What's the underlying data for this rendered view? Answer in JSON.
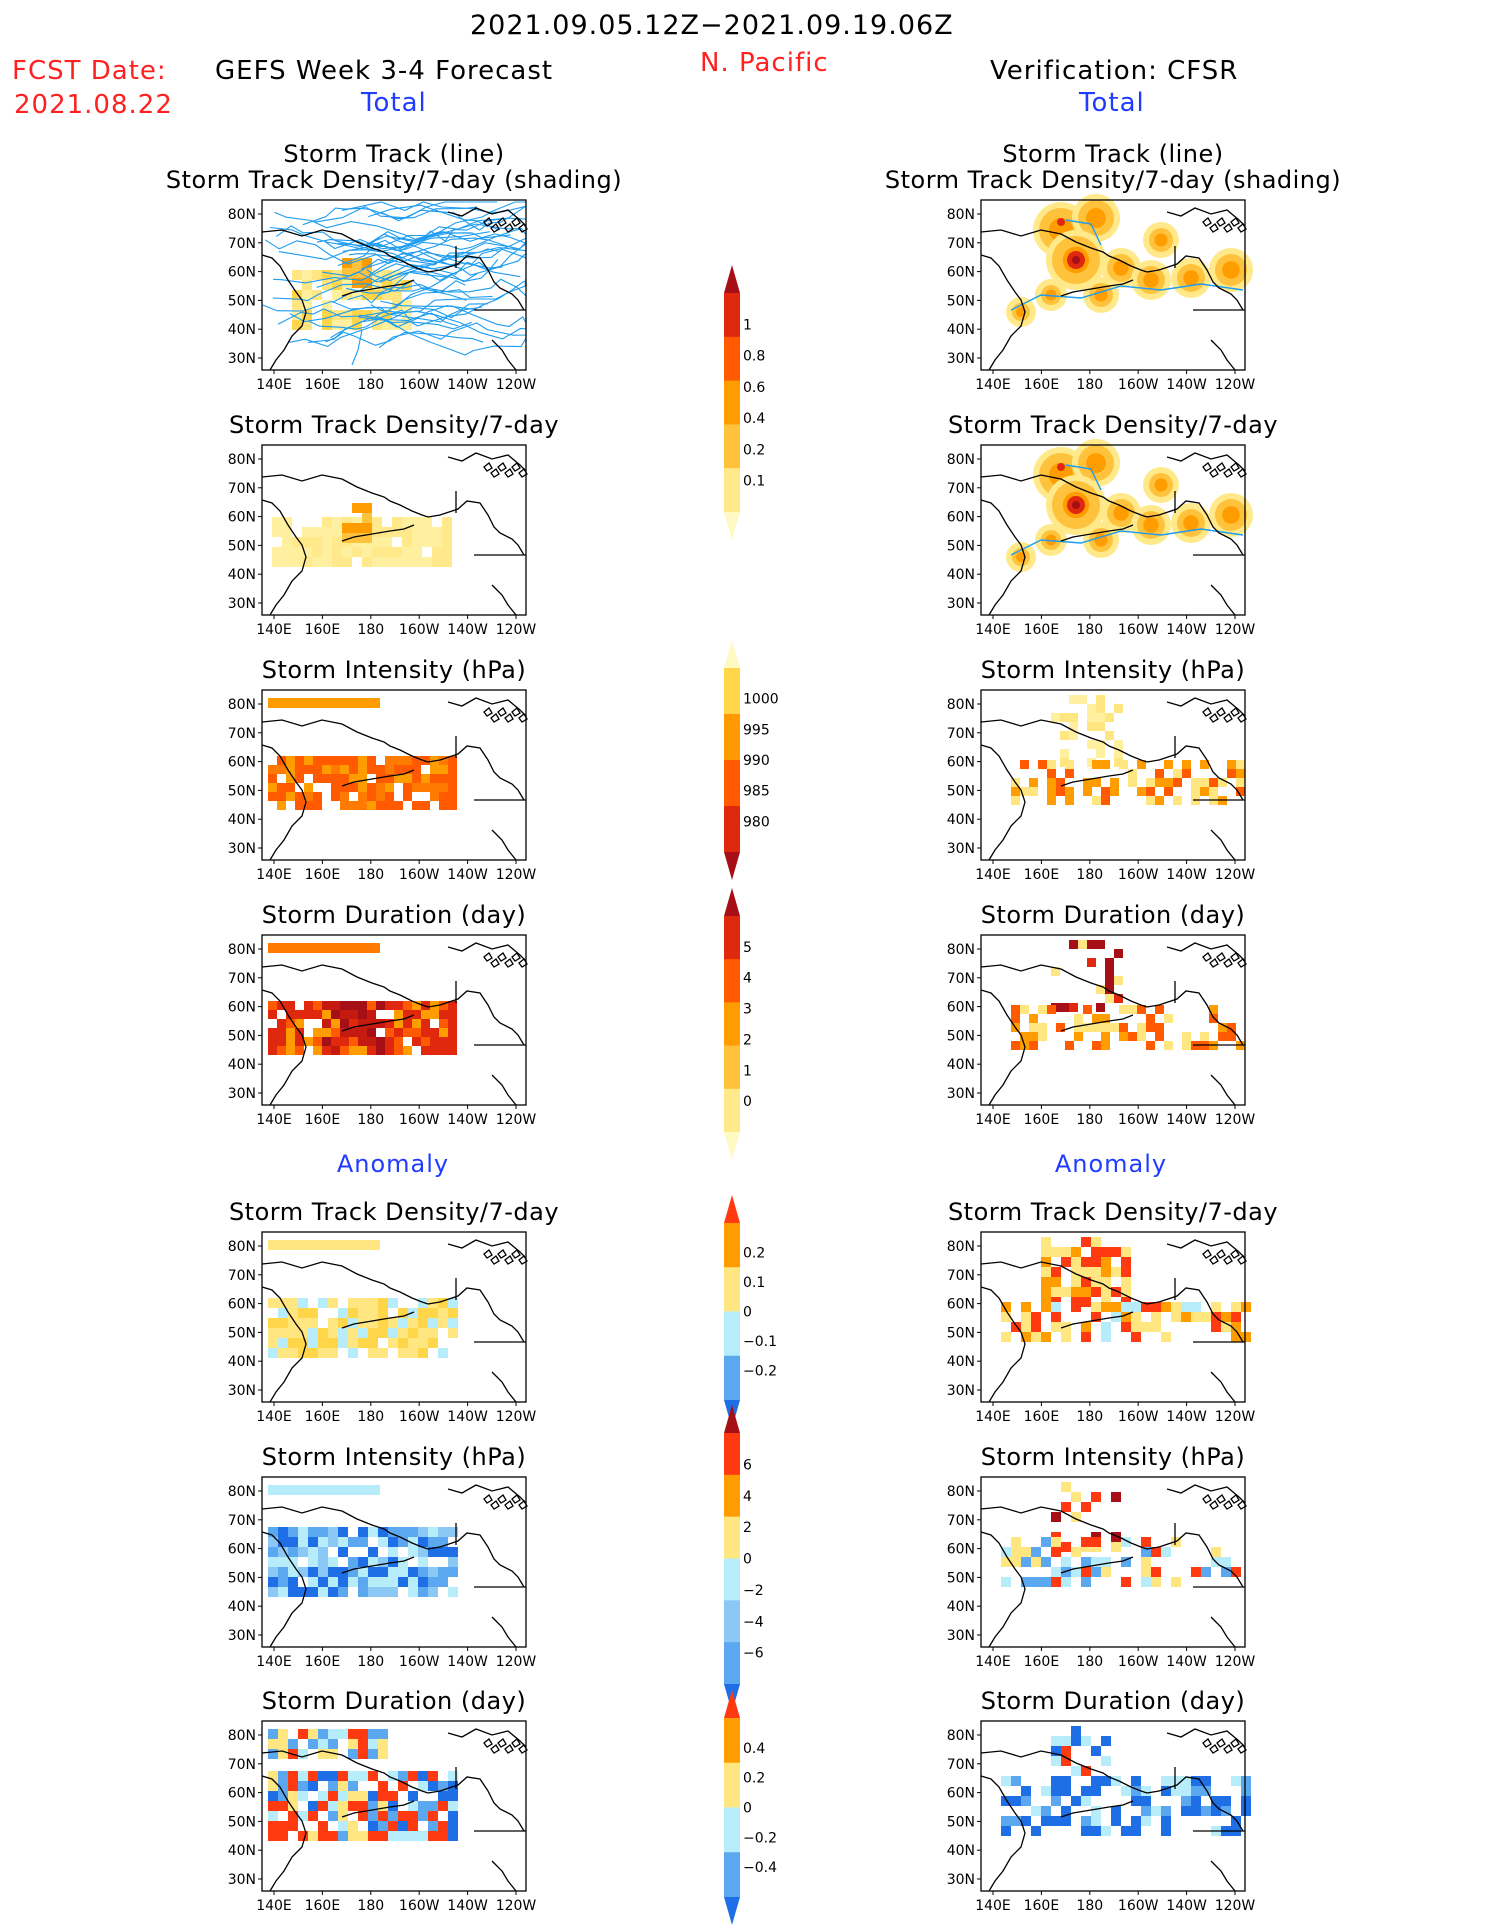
{
  "header": {
    "date_range": "2021.09.05.12Z−2021.09.19.06Z",
    "region": "N. Pacific",
    "fcst_label": "FCST Date:",
    "fcst_date": "2021.08.22",
    "left_title": "GEFS Week 3-4 Forecast",
    "right_title": "Verification: CFSR",
    "left_sub": "Total",
    "right_sub": "Total",
    "anomaly_left": "Anomaly",
    "anomaly_right": "Anomaly"
  },
  "map_axes": {
    "lon_labels": [
      "140E",
      "160E",
      "180",
      "160W",
      "140W",
      "120W"
    ],
    "lat_labels": [
      "80N",
      "70N",
      "60N",
      "50N",
      "40N",
      "30N"
    ]
  },
  "panels": [
    {
      "row": 0,
      "title_lines": [
        "Storm Track (line)",
        "Storm Track Density/7-day (shading)"
      ],
      "type": "track"
    },
    {
      "row": 1,
      "title_lines": [
        "Storm Track Density/7-day"
      ],
      "type": "density"
    },
    {
      "row": 2,
      "title_lines": [
        "Storm Intensity (hPa)"
      ],
      "type": "intensity"
    },
    {
      "row": 3,
      "title_lines": [
        "Storm Duration (day)"
      ],
      "type": "duration"
    },
    {
      "row": 4,
      "title_lines": [
        "Storm Track Density/7-day"
      ],
      "type": "density_anom"
    },
    {
      "row": 5,
      "title_lines": [
        "Storm Intensity (hPa)"
      ],
      "type": "intensity_anom"
    },
    {
      "row": 6,
      "title_lines": [
        "Storm Duration (day)"
      ],
      "type": "duration_anom"
    }
  ],
  "colorbars": [
    {
      "name": "density",
      "labels": [
        "1",
        "0.8",
        "0.6",
        "0.4",
        "0.2",
        "0.1"
      ],
      "colors": [
        "#a50f15",
        "#e0280f",
        "#ff5a00",
        "#ff9d00",
        "#ffc23c",
        "#ffe98a",
        "#fff9c4"
      ]
    },
    {
      "name": "intensity",
      "labels": [
        "1000",
        "995",
        "990",
        "985",
        "980"
      ],
      "colors": [
        "#fff9c4",
        "#ffd54a",
        "#ff9a00",
        "#ff5a00",
        "#e0280f",
        "#a50f15"
      ]
    },
    {
      "name": "duration",
      "labels": [
        "5",
        "4",
        "3",
        "2",
        "1",
        "0"
      ],
      "colors": [
        "#a50f15",
        "#e0280f",
        "#ff5a00",
        "#ff9d00",
        "#ffc23c",
        "#ffe98a",
        "#fff9c4"
      ]
    },
    {
      "name": "density_anom",
      "labels": [
        "0.2",
        "0.1",
        "0",
        "−0.1",
        "−0.2"
      ],
      "colors": [
        "#ff3a10",
        "#ff9d00",
        "#ffe680",
        "#b7ecfa",
        "#5ca8f0",
        "#1e6ee6"
      ]
    },
    {
      "name": "intensity_anom",
      "labels": [
        "6",
        "4",
        "2",
        "0",
        "−2",
        "−4",
        "−6"
      ],
      "colors": [
        "#a50f15",
        "#ff3a10",
        "#ff9d00",
        "#ffe680",
        "#b7ecfa",
        "#8cc8f5",
        "#5ca8f0",
        "#1e6ee6"
      ]
    },
    {
      "name": "duration_anom",
      "labels": [
        "0.4",
        "0.2",
        "0",
        "−0.2",
        "−0.4"
      ],
      "colors": [
        "#ff3a10",
        "#ff9d00",
        "#ffe680",
        "#b7ecfa",
        "#5ca8f0",
        "#1e6ee6"
      ]
    }
  ],
  "colors": {
    "title_red": "#ff2020",
    "title_blue": "#1f3cff",
    "track_line": "#1e9cf0"
  }
}
